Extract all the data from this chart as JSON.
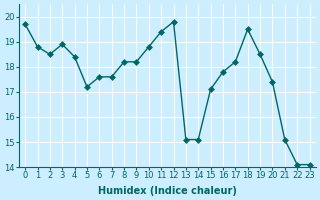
{
  "x": [
    0,
    1,
    2,
    3,
    4,
    5,
    6,
    7,
    8,
    9,
    10,
    11,
    12,
    13,
    14,
    15,
    16,
    17,
    18,
    19,
    20,
    21,
    22,
    23
  ],
  "y": [
    19.7,
    18.8,
    18.5,
    18.9,
    18.4,
    17.2,
    17.6,
    17.6,
    18.2,
    18.2,
    18.8,
    19.4,
    19.8,
    15.1,
    15.1,
    17.1,
    17.8,
    18.2,
    19.5,
    18.5,
    17.4,
    15.1,
    14.1,
    14.1
  ],
  "line_color": "#006666",
  "marker": "D",
  "marker_size": 3,
  "bg_color": "#cceeff",
  "grid_color": "#ffffff",
  "xlabel": "Humidex (Indice chaleur)",
  "ylim": [
    14,
    20.5
  ],
  "xlim": [
    -0.5,
    23.5
  ],
  "yticks": [
    14,
    15,
    16,
    17,
    18,
    19,
    20
  ],
  "xticks": [
    0,
    1,
    2,
    3,
    4,
    5,
    6,
    7,
    8,
    9,
    10,
    11,
    12,
    13,
    14,
    15,
    16,
    17,
    18,
    19,
    20,
    21,
    22,
    23
  ],
  "title_fontsize": 7,
  "label_fontsize": 7,
  "tick_fontsize": 6
}
